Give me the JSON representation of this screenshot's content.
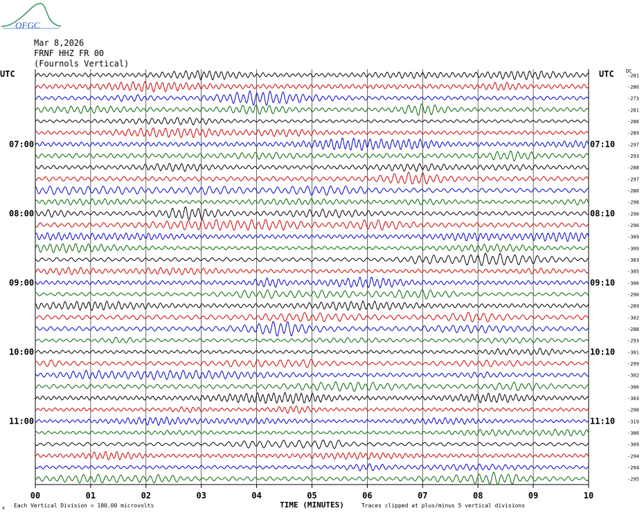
{
  "logo": {
    "text": "OFGC"
  },
  "header": {
    "date": "Mar 8,2026",
    "station": "FRNF HHZ FR 00",
    "location": "(Fournols Vertical)"
  },
  "axes": {
    "left_tz": "UTC",
    "right_tz": "UTC",
    "dc_label": "DC"
  },
  "colors": {
    "trace_cycle": [
      "#000000",
      "#d00000",
      "#0000cc",
      "#006600"
    ],
    "grid": "#000000",
    "text": "#000000"
  },
  "footer": {
    "scale_note": "Each Vertical Division =  100.00 microvolts",
    "clip_note": "Traces clipped at plus/minus 5 vertical divisions",
    "corner_mark": "4"
  },
  "chart_data": {
    "type": "line",
    "xlabel": "TIME (MINUTES)",
    "xlim": [
      0,
      10
    ],
    "x_ticks": [
      "00",
      "01",
      "02",
      "03",
      "04",
      "05",
      "06",
      "07",
      "08",
      "09",
      "10"
    ],
    "row_count": 36,
    "hour_labels_left": [
      {
        "row": 6,
        "label": "07:00"
      },
      {
        "row": 12,
        "label": "08:00"
      },
      {
        "row": 18,
        "label": "09:00"
      },
      {
        "row": 24,
        "label": "10:00"
      },
      {
        "row": 30,
        "label": "11:00"
      }
    ],
    "hour_labels_right": [
      {
        "row": 6,
        "label": "07:10"
      },
      {
        "row": 12,
        "label": "08:10"
      },
      {
        "row": 18,
        "label": "09:10"
      },
      {
        "row": 24,
        "label": "10:10"
      },
      {
        "row": 30,
        "label": "11:10"
      }
    ],
    "dc_offsets": [
      "-281",
      "-286",
      "-273",
      "-281",
      "-286",
      "-289",
      "-297",
      "-293",
      "-288",
      "-297",
      "-286",
      "-298",
      "-290",
      "-296",
      "-309",
      "-309",
      "-303",
      "-305",
      "-300",
      "-290",
      "-289",
      "-302",
      "-288",
      "-293",
      "-301",
      "-299",
      "-302",
      "-306",
      "-303",
      "-298",
      "-319",
      "-306",
      "-309",
      "-294",
      "-294",
      "-295"
    ]
  }
}
